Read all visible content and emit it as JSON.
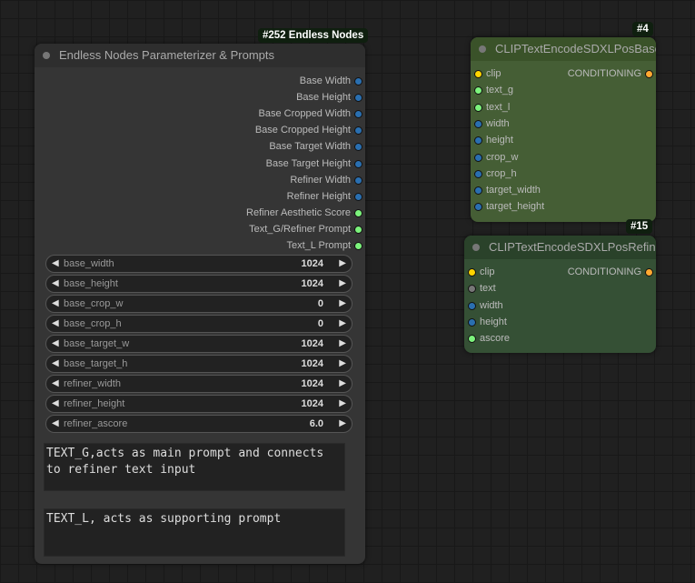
{
  "param_node": {
    "badge": "#252 Endless Nodes",
    "title": "Endless Nodes Parameterizer & Prompts",
    "outputs": [
      {
        "label": "Base Width",
        "type": "INT"
      },
      {
        "label": "Base Height",
        "type": "INT"
      },
      {
        "label": "Base Cropped Width",
        "type": "INT"
      },
      {
        "label": "Base Cropped Height",
        "type": "INT"
      },
      {
        "label": "Base Target Width",
        "type": "INT"
      },
      {
        "label": "Base Target Height",
        "type": "INT"
      },
      {
        "label": "Refiner Width",
        "type": "INT"
      },
      {
        "label": "Refiner Height",
        "type": "INT"
      },
      {
        "label": "Refiner Aesthetic Score",
        "type": "FLOAT"
      },
      {
        "label": "Text_G/Refiner Prompt",
        "type": "STRING"
      },
      {
        "label": "Text_L Prompt",
        "type": "STRING"
      }
    ],
    "widgets": [
      {
        "name": "base_width",
        "value": "1024"
      },
      {
        "name": "base_height",
        "value": "1024"
      },
      {
        "name": "base_crop_w",
        "value": "0"
      },
      {
        "name": "base_crop_h",
        "value": "0"
      },
      {
        "name": "base_target_w",
        "value": "1024"
      },
      {
        "name": "base_target_h",
        "value": "1024"
      },
      {
        "name": "refiner_width",
        "value": "1024"
      },
      {
        "name": "refiner_height",
        "value": "1024"
      },
      {
        "name": "refiner_ascore",
        "value": "6.0"
      }
    ],
    "text_g": "TEXT_G,acts as main prompt and connects to refiner text input",
    "text_l": "TEXT_L, acts as supporting prompt",
    "arrow_left": "◀",
    "arrow_right": "▶"
  },
  "base_node": {
    "badge": "#4",
    "title": "CLIPTextEncodeSDXLPosBase",
    "output": "CONDITIONING",
    "inputs": [
      {
        "label": "clip",
        "type": "CLIP"
      },
      {
        "label": "text_g",
        "type": "STRING"
      },
      {
        "label": "text_l",
        "type": "STRING"
      },
      {
        "label": "width",
        "type": "INT"
      },
      {
        "label": "height",
        "type": "INT"
      },
      {
        "label": "crop_w",
        "type": "INT"
      },
      {
        "label": "crop_h",
        "type": "INT"
      },
      {
        "label": "target_width",
        "type": "INT"
      },
      {
        "label": "target_height",
        "type": "INT"
      }
    ]
  },
  "refiner_node": {
    "badge": "#15",
    "title": "CLIPTextEncodeSDXLPosRefiner",
    "output": "CONDITIONING",
    "inputs": [
      {
        "label": "clip",
        "type": "CLIP"
      },
      {
        "label": "text",
        "type": "STRING_UNLINKED"
      },
      {
        "label": "width",
        "type": "INT"
      },
      {
        "label": "height",
        "type": "INT"
      },
      {
        "label": "ascore",
        "type": "FLOAT"
      }
    ]
  },
  "colors": {
    "INT": "#2a6fb0",
    "FLOAT": "#7cf37c",
    "STRING": "#7cf37c",
    "STRING_UNLINKED": "#777",
    "CLIP": "#ffd500",
    "CONDITIONING": "#ffa931",
    "wire_int": "#2e6da8",
    "wire_str": "#a9b8a6"
  }
}
